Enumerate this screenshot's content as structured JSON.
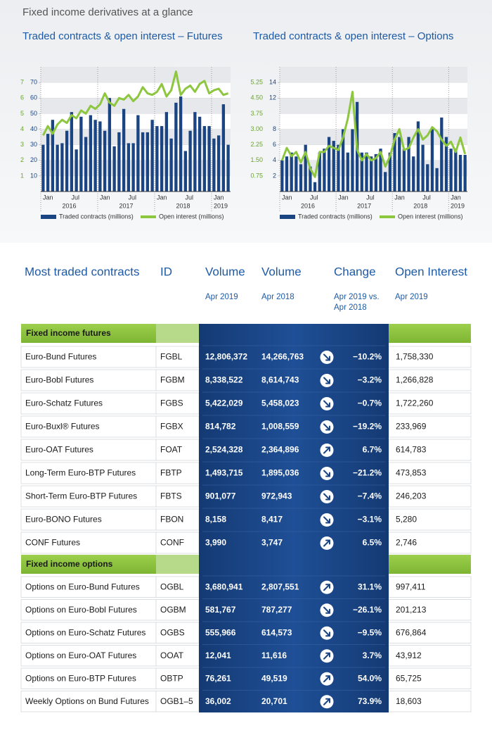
{
  "title": "Fixed income derivatives at a glance",
  "chart_data": [
    {
      "type": "bar_line",
      "title": "Traded contracts & open interest – Futures",
      "categories": [
        "Jan",
        null,
        null,
        null,
        null,
        null,
        "Jul",
        null,
        null,
        null,
        null,
        null,
        "Jan",
        null,
        null,
        null,
        null,
        null,
        "Jul",
        null,
        null,
        null,
        null,
        null,
        "Jan",
        null,
        null,
        null,
        null,
        null,
        "Jul",
        null,
        null,
        null,
        null,
        null,
        "Jan",
        null,
        null,
        null
      ],
      "years": [
        "2016",
        "2017",
        "2018",
        "2019"
      ],
      "series": [
        {
          "name": "Traded contracts (millions)",
          "color": "#1b4582",
          "type": "bar",
          "values": [
            30,
            37,
            46,
            30,
            31,
            39,
            51,
            27,
            48,
            35,
            49,
            46,
            45,
            39,
            60,
            29,
            38,
            53,
            31,
            31,
            49,
            38,
            38,
            46,
            42,
            42,
            51,
            34,
            57,
            61,
            26,
            39,
            51,
            48,
            42,
            42,
            34,
            36,
            56,
            30
          ]
        },
        {
          "name": "Open interest (millions)",
          "color": "#8dc63f",
          "type": "line",
          "axis": "y2",
          "values": [
            3.6,
            4.2,
            3.7,
            4.3,
            4.6,
            4.4,
            4.9,
            4.7,
            5.2,
            5.0,
            5.5,
            5.3,
            5.6,
            6.3,
            5.7,
            5.5,
            6.0,
            5.9,
            6.2,
            5.8,
            6.1,
            6.7,
            6.3,
            6.2,
            6.4,
            6.9,
            6.1,
            6.5,
            7.7,
            6.2,
            6.6,
            6.8,
            6.4,
            6.9,
            7.1,
            6.3,
            6.5,
            6.6,
            6.2,
            6.3
          ]
        }
      ],
      "ylim": [
        0,
        80
      ],
      "yticks": [
        10,
        20,
        30,
        40,
        50,
        60,
        70
      ],
      "y2lim": [
        0,
        8
      ],
      "y2ticks": [
        1,
        2,
        3,
        4,
        5,
        6,
        7
      ]
    },
    {
      "type": "bar_line",
      "title": "Traded contracts & open interest – Options",
      "categories": [
        "Jan",
        null,
        null,
        null,
        null,
        null,
        "Jul",
        null,
        null,
        null,
        null,
        null,
        "Jan",
        null,
        null,
        null,
        null,
        null,
        "Jul",
        null,
        null,
        null,
        null,
        null,
        "Jan",
        null,
        null,
        null,
        null,
        null,
        "Jul",
        null,
        null,
        null,
        null,
        null,
        "Jan",
        null,
        null,
        null
      ],
      "years": [
        "2016",
        "2017",
        "2018",
        "2019"
      ],
      "series": [
        {
          "name": "Traded contracts (millions)",
          "color": "#1b4582",
          "type": "bar",
          "values": [
            4,
            4.5,
            5,
            4.5,
            3.5,
            6,
            3.2,
            1.2,
            5,
            5.5,
            7,
            6.5,
            6,
            8,
            5,
            8,
            11.5,
            5,
            5,
            4.5,
            4.8,
            5.5,
            2.5,
            5,
            7.5,
            7,
            5.5,
            7,
            4.5,
            9,
            6,
            3.5,
            8,
            3,
            9.5,
            7,
            5.5,
            5.5,
            4.7,
            4.7
          ]
        },
        {
          "name": "Open interest (millions)",
          "color": "#8dc63f",
          "type": "line",
          "axis": "y2",
          "values": [
            1.5,
            2.1,
            1.7,
            1.9,
            1.4,
            1.9,
            1.1,
            0.7,
            1.9,
            1.9,
            2.2,
            2.1,
            2.0,
            2.6,
            3.5,
            4.8,
            2.0,
            1.5,
            1.8,
            1.5,
            1.6,
            1.9,
            1.2,
            1.7,
            2.5,
            3.0,
            2.0,
            2.1,
            2.6,
            3.0,
            2.5,
            2.7,
            3.1,
            2.9,
            2.5,
            2.2,
            2.4,
            1.9,
            2.6,
            1.8
          ]
        }
      ],
      "ylim": [
        0,
        16
      ],
      "yticks": [
        2,
        4,
        6,
        8,
        12,
        14
      ],
      "y2lim": [
        0,
        6
      ],
      "y2ticks": [
        0.75,
        {
          "value": 1.5,
          "label": "1.50"
        },
        2.25,
        {
          "value": 3,
          "label": "3.00"
        },
        3.75,
        {
          "value": 4.5,
          "label": "4.50"
        },
        5.25
      ]
    }
  ],
  "table": {
    "columns": [
      "Most traded contracts",
      "ID",
      "Volume",
      "Volume",
      "Change",
      "Open Interest"
    ],
    "subheaders": [
      "Apr 2019",
      "Apr 2018",
      "Apr 2019 vs.",
      "Apr 2018",
      "Apr 2019"
    ],
    "sections": [
      {
        "title": "Fixed income futures",
        "rows": [
          [
            "Euro-Bund Futures",
            "FGBL",
            "12,806,372",
            "14,266,763",
            "−10.2%",
            "1,758,330"
          ],
          [
            "Euro-Bobl Futures",
            "FGBM",
            "8,338,522",
            "8,614,743",
            "−3.2%",
            "1,266,828"
          ],
          [
            "Euro-Schatz Futures",
            "FGBS",
            "5,422,029",
            "5,458,023",
            "−0.7%",
            "1,722,260"
          ],
          [
            "Euro-Buxl® Futures",
            "FGBX",
            "814,782",
            "1,008,559",
            "−19.2%",
            "233,969"
          ],
          [
            "Euro-OAT Futures",
            "FOAT",
            "2,524,328",
            "2,364,896",
            "6.7%",
            "614,783"
          ],
          [
            "Long-Term Euro-BTP Futures",
            "FBTP",
            "1,493,715",
            "1,895,036",
            "−21.2%",
            "473,853"
          ],
          [
            "Short-Term Euro-BTP Futures",
            "FBTS",
            "901,077",
            "972,943",
            "−7.4%",
            "246,203"
          ],
          [
            "Euro-BONO Futures",
            "FBON",
            "8,158",
            "8,417",
            "−3.1%",
            "5,280"
          ],
          [
            "CONF Futures",
            "CONF",
            "3,990",
            "3,747",
            "6.5%",
            "2,746"
          ]
        ]
      },
      {
        "title": "Fixed income options",
        "rows": [
          [
            "Options on Euro-Bund Futures",
            "OGBL",
            "3,680,941",
            "2,807,551",
            "31.1%",
            "997,411"
          ],
          [
            "Options on Euro-Bobl Futures",
            "OGBM",
            "581,767",
            "787,277",
            "−26.1%",
            "201,213"
          ],
          [
            "Options on Euro-Schatz Futures",
            "OGBS",
            "555,966",
            "614,573",
            "−9.5%",
            "676,864"
          ],
          [
            "Options on Euro-OAT Futures",
            "OOAT",
            "12,041",
            "11,616",
            "3.7%",
            "43,912"
          ],
          [
            "Options on Euro-BTP Futures",
            "OBTP",
            "76,261",
            "49,519",
            "54.0%",
            "65,725"
          ],
          [
            "Weekly Options on Bund Futures",
            "OGB1–5",
            "36,002",
            "20,701",
            "73.9%",
            "18,603"
          ]
        ]
      }
    ]
  }
}
